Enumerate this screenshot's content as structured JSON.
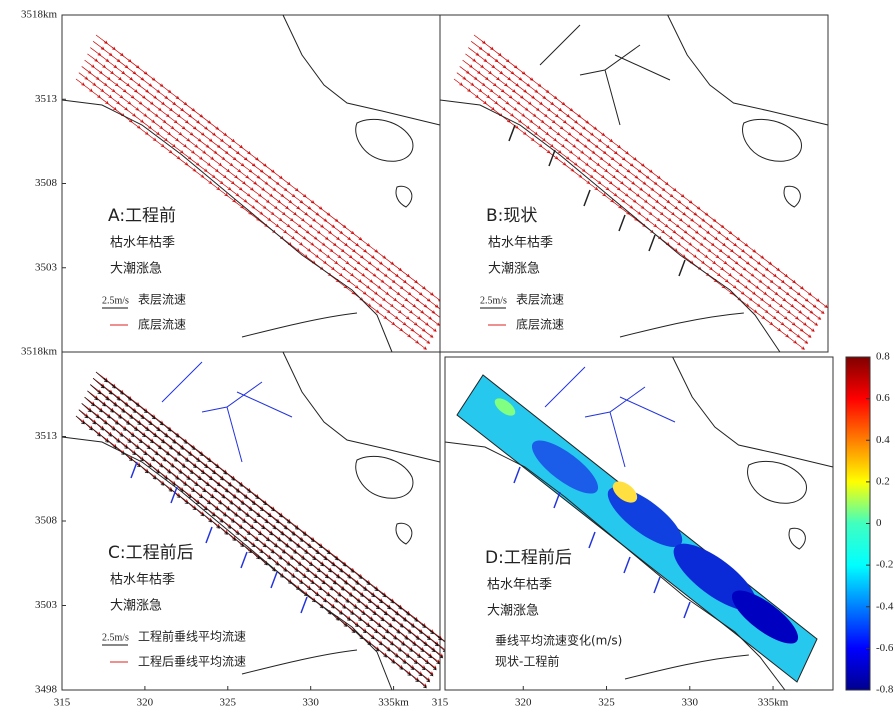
{
  "y_axis_top": {
    "ylim": [
      3498,
      3518
    ],
    "ticks": [
      {
        "value": 3518,
        "label": "3518km"
      },
      3513,
      3508,
      3503
    ]
  },
  "y_axis_bottom": {
    "ylim": [
      3498,
      3518
    ],
    "ticks": [
      {
        "value": 3518,
        "label": "3518km"
      },
      3513,
      3508,
      3503,
      3498
    ]
  },
  "x_axis_left": {
    "xlim": [
      315,
      337.8
    ],
    "ticks": [
      315,
      320,
      325,
      330,
      {
        "value": 335,
        "label": "335km"
      }
    ]
  },
  "x_axis_right": {
    "xlim": [
      315,
      338.3
    ],
    "ticks": [
      315,
      320,
      325,
      330,
      {
        "value": 335,
        "label": "335km"
      }
    ]
  },
  "panels": [
    {
      "title": "A:工程前",
      "line1": "枯水年枯季",
      "line2": "大潮涨急",
      "scale": "2.5m/s",
      "legend1": "表层流速",
      "legend2": "底层流速"
    },
    {
      "title": "B:现状",
      "line1": "枯水年枯季",
      "line2": "大潮涨急",
      "scale": "2.5m/s",
      "legend1": "表层流速",
      "legend2": "底层流速"
    },
    {
      "title": "C:工程前后",
      "line1": "枯水年枯季",
      "line2": "大潮涨急",
      "scale": "2.5m/s",
      "legend1": "工程前垂线平均流速",
      "legend2": "工程后垂线平均流速"
    },
    {
      "title": "D:工程前后",
      "line1": "枯水年枯季",
      "line2": "大潮涨急",
      "legend1": "垂线平均流速变化(m/s)",
      "legend2": "现状-工程前"
    }
  ],
  "colorbar": {
    "lim": [
      -0.8,
      0.8
    ],
    "ticks": [
      0.8,
      0.6,
      0.4,
      0.2,
      0,
      -0.2,
      -0.4,
      -0.6,
      -0.8
    ]
  }
}
